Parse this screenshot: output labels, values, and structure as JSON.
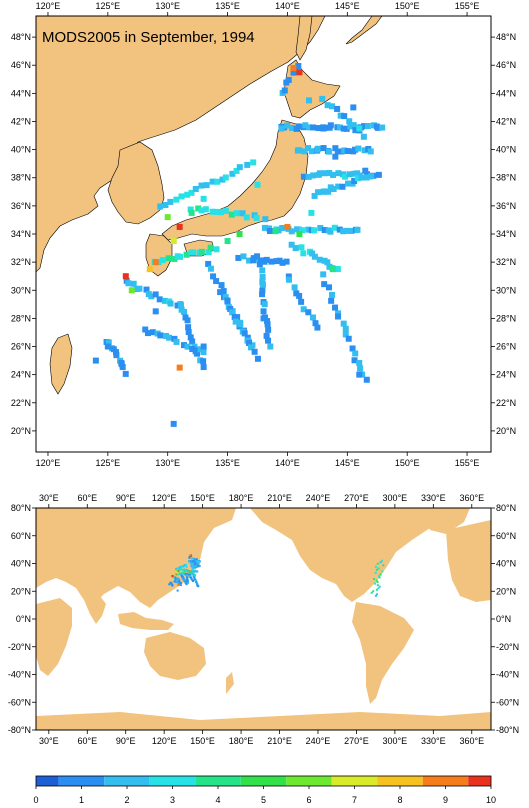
{
  "title": "MODS2005 in September, 1994",
  "colors": {
    "land": "#f2c27f",
    "ocean": "#ffffff",
    "frame": "#000000"
  },
  "regional_map": {
    "lon_range": [
      119,
      157
    ],
    "lat_range": [
      18.5,
      49.5
    ],
    "lon_ticks": [
      "120°E",
      "125°E",
      "130°E",
      "135°E",
      "140°E",
      "145°E",
      "150°E",
      "155°E"
    ],
    "lat_ticks": [
      "20°N",
      "22°N",
      "24°N",
      "26°N",
      "28°N",
      "30°N",
      "32°N",
      "34°N",
      "36°N",
      "38°N",
      "40°N",
      "42°N",
      "44°N",
      "46°N",
      "48°N"
    ]
  },
  "global_map": {
    "lon_range": [
      20,
      375
    ],
    "lat_range": [
      -80,
      80
    ],
    "lon_ticks": [
      "30°E",
      "60°E",
      "90°E",
      "120°E",
      "150°E",
      "180°E",
      "210°E",
      "240°E",
      "270°E",
      "300°E",
      "330°E",
      "360°E"
    ],
    "lat_ticks": [
      "80°N",
      "60°N",
      "40°N",
      "20°N",
      "0°N",
      "-20°N",
      "-40°N",
      "-60°N",
      "-80°N"
    ]
  },
  "colorbar": {
    "labels": [
      "0",
      "1",
      "2",
      "3",
      "4",
      "5",
      "6",
      "7",
      "8",
      "9",
      "10"
    ],
    "colors": [
      "#1f5fd6",
      "#2a8ff0",
      "#33bef0",
      "#26e2e6",
      "#24e48a",
      "#30e14a",
      "#6ce82e",
      "#d8ea2a",
      "#f7c21f",
      "#f57d1c",
      "#e8321e"
    ]
  },
  "chart_data": {
    "type": "heatmap",
    "title": "MODS2005 in September, 1994",
    "value_range": [
      0,
      10
    ],
    "cells": [
      {
        "lon": 141,
        "lat": 45.5,
        "value": 10
      },
      {
        "lon": 140.5,
        "lat": 45.8,
        "value": 9
      },
      {
        "lon": 141.8,
        "lat": 43.5,
        "value": 2
      },
      {
        "lon": 145.5,
        "lat": 43,
        "value": 1
      },
      {
        "lon": 139.5,
        "lat": 41.5,
        "value": 2
      },
      {
        "lon": 143,
        "lat": 41.5,
        "value": 1
      },
      {
        "lon": 146,
        "lat": 41.5,
        "value": 3
      },
      {
        "lon": 142.5,
        "lat": 40,
        "value": 2
      },
      {
        "lon": 144,
        "lat": 39.5,
        "value": 1
      },
      {
        "lon": 146.5,
        "lat": 38.5,
        "value": 1
      },
      {
        "lon": 143,
        "lat": 37,
        "value": 2
      },
      {
        "lon": 142,
        "lat": 35.5,
        "value": 3
      },
      {
        "lon": 140,
        "lat": 34.5,
        "value": 9
      },
      {
        "lon": 139,
        "lat": 34.2,
        "value": 4
      },
      {
        "lon": 141,
        "lat": 34,
        "value": 5
      },
      {
        "lon": 143.8,
        "lat": 31.5,
        "value": 4
      },
      {
        "lon": 131,
        "lat": 34.5,
        "value": 10
      },
      {
        "lon": 130,
        "lat": 35.2,
        "value": 6
      },
      {
        "lon": 132,
        "lat": 35.5,
        "value": 4
      },
      {
        "lon": 130.5,
        "lat": 33.5,
        "value": 7
      },
      {
        "lon": 129,
        "lat": 32,
        "value": 9
      },
      {
        "lon": 128.5,
        "lat": 31.5,
        "value": 8
      },
      {
        "lon": 127,
        "lat": 30,
        "value": 6
      },
      {
        "lon": 126.5,
        "lat": 31,
        "value": 10
      },
      {
        "lon": 135,
        "lat": 33.5,
        "value": 4
      },
      {
        "lon": 136,
        "lat": 34,
        "value": 5
      },
      {
        "lon": 133,
        "lat": 36.5,
        "value": 3
      },
      {
        "lon": 137.5,
        "lat": 37.5,
        "value": 3
      },
      {
        "lon": 129,
        "lat": 28.5,
        "value": 1
      },
      {
        "lon": 131,
        "lat": 24.5,
        "value": 9
      },
      {
        "lon": 124,
        "lat": 25,
        "value": 1
      },
      {
        "lon": 125,
        "lat": 26,
        "value": 1
      },
      {
        "lon": 133,
        "lat": 26,
        "value": 1
      },
      {
        "lon": 138,
        "lat": 28,
        "value": 1
      },
      {
        "lon": 146,
        "lat": 24,
        "value": 1
      },
      {
        "lon": 130.5,
        "lat": 20.5,
        "value": 1
      }
    ]
  }
}
